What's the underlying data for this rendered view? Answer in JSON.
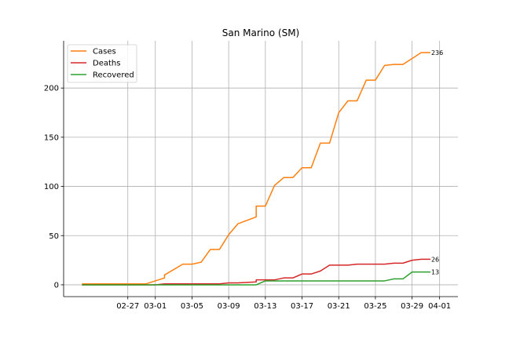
{
  "chart_data": {
    "type": "line",
    "title": "San Marino (SM)",
    "xlabel": "",
    "ylabel": "",
    "x_start": "2020-02-22",
    "x_ticks": [
      {
        "date": "2020-02-27",
        "label": "02-27"
      },
      {
        "date": "2020-03-01",
        "label": "03-01"
      },
      {
        "date": "2020-03-05",
        "label": "03-05"
      },
      {
        "date": "2020-03-09",
        "label": "03-09"
      },
      {
        "date": "2020-03-13",
        "label": "03-13"
      },
      {
        "date": "2020-03-17",
        "label": "03-17"
      },
      {
        "date": "2020-03-21",
        "label": "03-21"
      },
      {
        "date": "2020-03-25",
        "label": "03-25"
      },
      {
        "date": "2020-03-29",
        "label": "03-29"
      },
      {
        "date": "2020-04-01",
        "label": "04-01"
      }
    ],
    "y_ticks": [
      0,
      50,
      100,
      150,
      200
    ],
    "xlim": [
      "2020-02-20",
      "2020-04-03"
    ],
    "ylim": [
      -12,
      248
    ],
    "grid": true,
    "legend_placement": "top-left",
    "series": [
      {
        "name": "Cases",
        "color": "#ff7f0e",
        "end_label": "236",
        "points": [
          [
            "2020-02-22",
            1
          ],
          [
            "2020-02-29",
            1
          ],
          [
            "2020-03-02",
            7
          ],
          [
            "2020-03-02",
            10
          ],
          [
            "2020-03-04",
            21
          ],
          [
            "2020-03-05",
            21
          ],
          [
            "2020-03-06",
            23
          ],
          [
            "2020-03-07",
            36
          ],
          [
            "2020-03-08",
            36
          ],
          [
            "2020-03-09",
            51
          ],
          [
            "2020-03-10",
            62
          ],
          [
            "2020-03-12",
            69
          ],
          [
            "2020-03-12",
            80
          ],
          [
            "2020-03-13",
            80
          ],
          [
            "2020-03-14",
            101
          ],
          [
            "2020-03-15",
            109
          ],
          [
            "2020-03-16",
            109
          ],
          [
            "2020-03-17",
            119
          ],
          [
            "2020-03-18",
            119
          ],
          [
            "2020-03-19",
            144
          ],
          [
            "2020-03-20",
            144
          ],
          [
            "2020-03-21",
            175
          ],
          [
            "2020-03-22",
            187
          ],
          [
            "2020-03-23",
            187
          ],
          [
            "2020-03-24",
            208
          ],
          [
            "2020-03-25",
            208
          ],
          [
            "2020-03-26",
            223
          ],
          [
            "2020-03-27",
            224
          ],
          [
            "2020-03-28",
            224
          ],
          [
            "2020-03-30",
            236
          ],
          [
            "2020-03-31",
            236
          ]
        ]
      },
      {
        "name": "Deaths",
        "color": "#d62728",
        "end_label": "26",
        "points": [
          [
            "2020-02-22",
            0
          ],
          [
            "2020-03-01",
            0
          ],
          [
            "2020-03-02",
            1
          ],
          [
            "2020-03-08",
            1
          ],
          [
            "2020-03-09",
            2
          ],
          [
            "2020-03-10",
            2
          ],
          [
            "2020-03-12",
            3
          ],
          [
            "2020-03-12",
            5
          ],
          [
            "2020-03-14",
            5
          ],
          [
            "2020-03-15",
            7
          ],
          [
            "2020-03-16",
            7
          ],
          [
            "2020-03-17",
            11
          ],
          [
            "2020-03-18",
            11
          ],
          [
            "2020-03-19",
            14
          ],
          [
            "2020-03-20",
            20
          ],
          [
            "2020-03-22",
            20
          ],
          [
            "2020-03-23",
            21
          ],
          [
            "2020-03-26",
            21
          ],
          [
            "2020-03-27",
            22
          ],
          [
            "2020-03-28",
            22
          ],
          [
            "2020-03-29",
            25
          ],
          [
            "2020-03-30",
            26
          ],
          [
            "2020-03-31",
            26
          ]
        ]
      },
      {
        "name": "Recovered",
        "color": "#2ca02c",
        "end_label": "13",
        "points": [
          [
            "2020-02-22",
            0
          ],
          [
            "2020-03-12",
            0
          ],
          [
            "2020-03-13",
            4
          ],
          [
            "2020-03-26",
            4
          ],
          [
            "2020-03-27",
            6
          ],
          [
            "2020-03-28",
            6
          ],
          [
            "2020-03-29",
            13
          ],
          [
            "2020-03-31",
            13
          ]
        ]
      }
    ]
  }
}
